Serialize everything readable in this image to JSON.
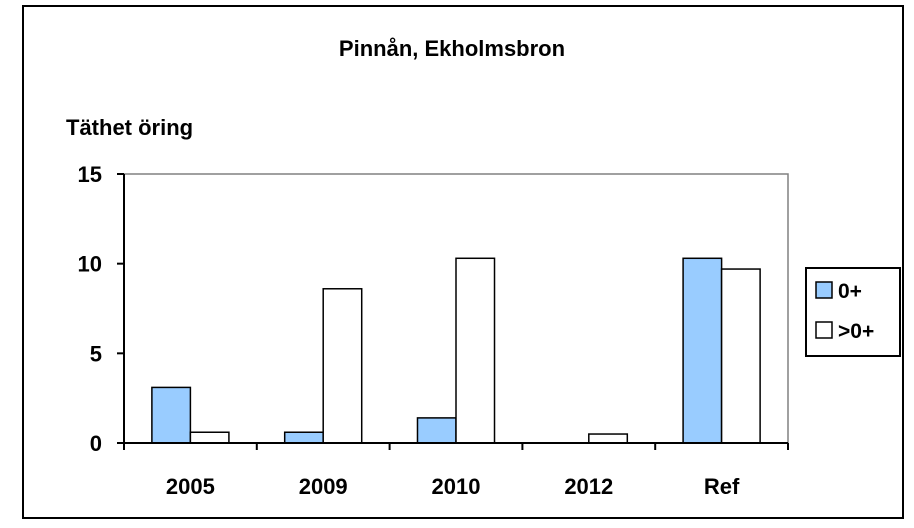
{
  "chart_data": {
    "type": "bar",
    "title": "Pinnån, Ekholmsbron",
    "ylabel": "Täthet öring",
    "xlabel": "",
    "categories": [
      "2005",
      "2009",
      "2010",
      "2012",
      "Ref"
    ],
    "series": [
      {
        "name": "0+",
        "values": [
          3.1,
          0.6,
          1.4,
          0,
          10.3
        ],
        "color": "#99ccff"
      },
      {
        "name": ">0+",
        "values": [
          0.6,
          8.6,
          10.3,
          0.5,
          9.7
        ],
        "color": "#ffffff"
      }
    ],
    "ylim": [
      0,
      15
    ],
    "yticks": [
      0,
      5,
      10,
      15
    ],
    "grid": false,
    "legend_position": "right"
  }
}
